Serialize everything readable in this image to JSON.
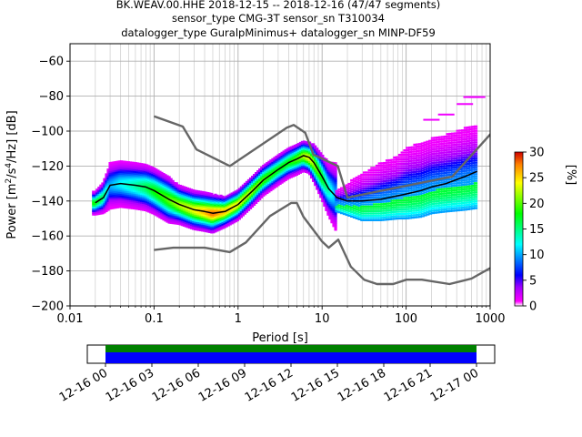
{
  "chart_data": {
    "type": "heatmap",
    "title_lines": [
      "BK.WEAV.00.HHE   2018-12-15 -- 2018-12-16  (47/47 segments)",
      "sensor_type CMG-3T sensor_sn T310034",
      "datalogger_type GuralpMinimus+ datalogger_sn MINP-DF59"
    ],
    "xlabel": "Period [s]",
    "ylabel": "Power [m²/s⁴/Hz] [dB]",
    "xscale": "log",
    "xlim": [
      0.01,
      1000
    ],
    "ylim": [
      -200,
      -50
    ],
    "x_ticks": [
      0.01,
      0.1,
      1,
      10,
      100,
      1000
    ],
    "x_tick_labels": [
      "0.01",
      "0.1",
      "1",
      "10",
      "100",
      "1000"
    ],
    "y_ticks": [
      -200,
      -180,
      -160,
      -140,
      -120,
      -100,
      -80,
      -60
    ],
    "y_tick_labels": [
      "−200",
      "−180",
      "−160",
      "−140",
      "−120",
      "−100",
      "−80",
      "−60"
    ],
    "grid": true,
    "colorbar": {
      "label": "[%]",
      "range": [
        0,
        30
      ],
      "ticks": [
        0,
        5,
        10,
        15,
        20,
        25,
        30
      ],
      "tick_labels": [
        "0",
        "5",
        "10",
        "15",
        "20",
        "25",
        "30"
      ]
    },
    "series": [
      {
        "role": "noise-model-high",
        "color": "#666666",
        "x": [
          0.1,
          0.22,
          0.32,
          0.8,
          3.8,
          4.6,
          6.3,
          7.9,
          15.4,
          20,
          354.8,
          10000
        ],
        "y": [
          -91.5,
          -97.4,
          -110.5,
          -120,
          -98,
          -96.5,
          -101,
          -113.5,
          -120,
          -138,
          -126,
          -48.5
        ]
      },
      {
        "role": "noise-model-low",
        "color": "#666666",
        "x": [
          0.1,
          0.17,
          0.4,
          0.8,
          1.24,
          2.4,
          4.3,
          5,
          6,
          10,
          12,
          15.6,
          21.9,
          31.6,
          45,
          70,
          101,
          154,
          328,
          600,
          10000
        ],
        "y": [
          -168,
          -166.7,
          -166.7,
          -169.2,
          -163.7,
          -148.6,
          -141.1,
          -141.1,
          -149,
          -163.2,
          -166.7,
          -162.1,
          -177.5,
          -185,
          -187.5,
          -187.5,
          -185,
          -185,
          -187.5,
          -184.4,
          -151.5
        ]
      },
      {
        "role": "mean-psd",
        "color": "#000000",
        "x": [
          0.02,
          0.025,
          0.03,
          0.04,
          0.06,
          0.08,
          0.1,
          0.15,
          0.2,
          0.3,
          0.4,
          0.5,
          0.7,
          1,
          1.5,
          2,
          3,
          4,
          5,
          6,
          7,
          8,
          10,
          12,
          15,
          20,
          30,
          50,
          80,
          100,
          150,
          200,
          300,
          500,
          700
        ],
        "y": [
          -141,
          -138,
          -131,
          -130,
          -131,
          -132,
          -134,
          -139,
          -142,
          -145,
          -146,
          -147,
          -146,
          -142,
          -134,
          -128,
          -122,
          -118,
          -116,
          -114,
          -115,
          -118,
          -126,
          -133,
          -138,
          -140,
          -140,
          -139,
          -137,
          -136,
          -134,
          -132,
          -130,
          -126,
          -123
        ]
      }
    ],
    "psd_histogram": {
      "description": "probabilistic PSD occurrence percentage per period bin",
      "core_band": {
        "x": [
          0.02,
          0.025,
          0.03,
          0.04,
          0.06,
          0.08,
          0.1,
          0.15,
          0.2,
          0.3,
          0.4,
          0.5,
          0.7,
          1,
          1.5,
          2,
          3,
          4,
          5,
          6,
          7,
          8,
          10,
          12,
          15
        ],
        "y": [
          -141,
          -138,
          -131,
          -130,
          -131,
          -132,
          -134,
          -139,
          -142,
          -145,
          -146,
          -147,
          -146,
          -142,
          -134,
          -128,
          -122,
          -118,
          -116,
          -114,
          -115,
          -118,
          -126,
          -133,
          -138
        ],
        "spread_db": [
          3,
          4,
          6,
          6,
          6,
          6,
          6,
          6,
          5,
          5,
          5,
          5,
          4,
          4,
          4,
          4,
          4,
          4,
          4,
          4,
          4,
          5,
          6,
          7,
          9
        ],
        "peak_percent": [
          18,
          16,
          10,
          12,
          14,
          16,
          18,
          20,
          22,
          24,
          26,
          28,
          26,
          24,
          22,
          20,
          18,
          18,
          20,
          22,
          24,
          22,
          18,
          14,
          10
        ]
      },
      "long_period_band": {
        "x": [
          15,
          20,
          30,
          50,
          80,
          100,
          150,
          200,
          300,
          500,
          700
        ],
        "y_low": [
          -146,
          -148,
          -151,
          -151,
          -150,
          -150,
          -149,
          -147,
          -146,
          -145,
          -144
        ],
        "y_high": [
          -133,
          -130,
          -124,
          -118,
          -114,
          -109,
          -107,
          -104,
          -102,
          -98,
          -96
        ],
        "outliers_top": [
          [
            200,
            -93
          ],
          [
            300,
            -90
          ],
          [
            500,
            -84
          ],
          [
            600,
            -80
          ],
          [
            700,
            -80
          ]
        ]
      }
    }
  },
  "time_bar": {
    "tick_labels": [
      "12-16 00",
      "12-16 03",
      "12-16 06",
      "12-16 09",
      "12-16 12",
      "12-16 15",
      "12-16 18",
      "12-16 21",
      "12-17 00"
    ],
    "data_coverage_color": "#0000ff",
    "gap_coverage_color": "#008000"
  }
}
